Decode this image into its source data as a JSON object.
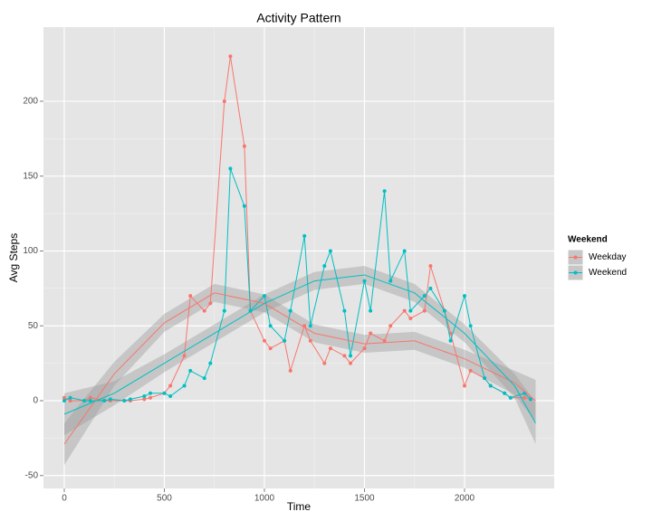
{
  "chart_data": {
    "type": "line",
    "title": "Activity Pattern",
    "x_label": "Time",
    "y_label": "Avg Steps",
    "legend_title": "Weekend",
    "legend_position": "right",
    "grid": true,
    "x": [
      0,
      30,
      100,
      130,
      200,
      230,
      300,
      330,
      400,
      430,
      500,
      530,
      600,
      630,
      700,
      730,
      800,
      830,
      900,
      930,
      1000,
      1030,
      1100,
      1130,
      1200,
      1230,
      1300,
      1330,
      1400,
      1430,
      1500,
      1530,
      1600,
      1630,
      1700,
      1730,
      1800,
      1830,
      1900,
      1930,
      2000,
      2030,
      2100,
      2130,
      2200,
      2230,
      2300,
      2330
    ],
    "series": [
      {
        "name": "Weekday",
        "color": "#F8766D",
        "values": [
          2,
          0,
          0,
          2,
          0,
          0,
          0,
          0,
          1,
          2,
          5,
          10,
          30,
          70,
          60,
          65,
          200,
          230,
          170,
          60,
          40,
          35,
          40,
          20,
          50,
          40,
          25,
          35,
          30,
          25,
          35,
          45,
          40,
          50,
          60,
          55,
          60,
          90,
          60,
          45,
          10,
          20,
          15,
          10,
          5,
          2,
          2,
          1
        ]
      },
      {
        "name": "Weekend",
        "color": "#00BFC4",
        "values": [
          0,
          2,
          0,
          0,
          0,
          1,
          0,
          1,
          3,
          5,
          5,
          3,
          10,
          20,
          15,
          25,
          60,
          155,
          130,
          60,
          70,
          50,
          40,
          60,
          110,
          50,
          90,
          100,
          60,
          30,
          80,
          60,
          140,
          80,
          100,
          60,
          70,
          75,
          60,
          40,
          70,
          50,
          15,
          10,
          5,
          2,
          5,
          1
        ]
      }
    ],
    "smooth": {
      "x": [
        0,
        250,
        500,
        750,
        1000,
        1250,
        1500,
        1750,
        2000,
        2250,
        2355
      ],
      "series": [
        {
          "fit": [
            -29,
            18,
            52,
            72,
            65,
            45,
            38,
            40,
            28,
            12,
            0
          ],
          "lower": [
            -43,
            10,
            46,
            66,
            59,
            39,
            32,
            34,
            22,
            4,
            -14
          ],
          "upper": [
            -15,
            26,
            58,
            78,
            71,
            51,
            44,
            46,
            34,
            20,
            14
          ]
        },
        {
          "fit": [
            -9,
            5,
            25,
            45,
            65,
            80,
            84,
            72,
            45,
            10,
            -15
          ],
          "lower": [
            -23,
            -3,
            19,
            39,
            59,
            74,
            78,
            66,
            39,
            2,
            -29
          ],
          "upper": [
            5,
            13,
            31,
            51,
            71,
            86,
            90,
            78,
            51,
            18,
            -1
          ]
        }
      ]
    },
    "xlim": [
      -104,
      2448
    ],
    "ylim": [
      -58.6,
      249.5
    ],
    "xticks": [
      0,
      500,
      1000,
      1500,
      2000
    ],
    "yticks": [
      -50,
      0,
      50,
      100,
      150,
      200
    ]
  }
}
